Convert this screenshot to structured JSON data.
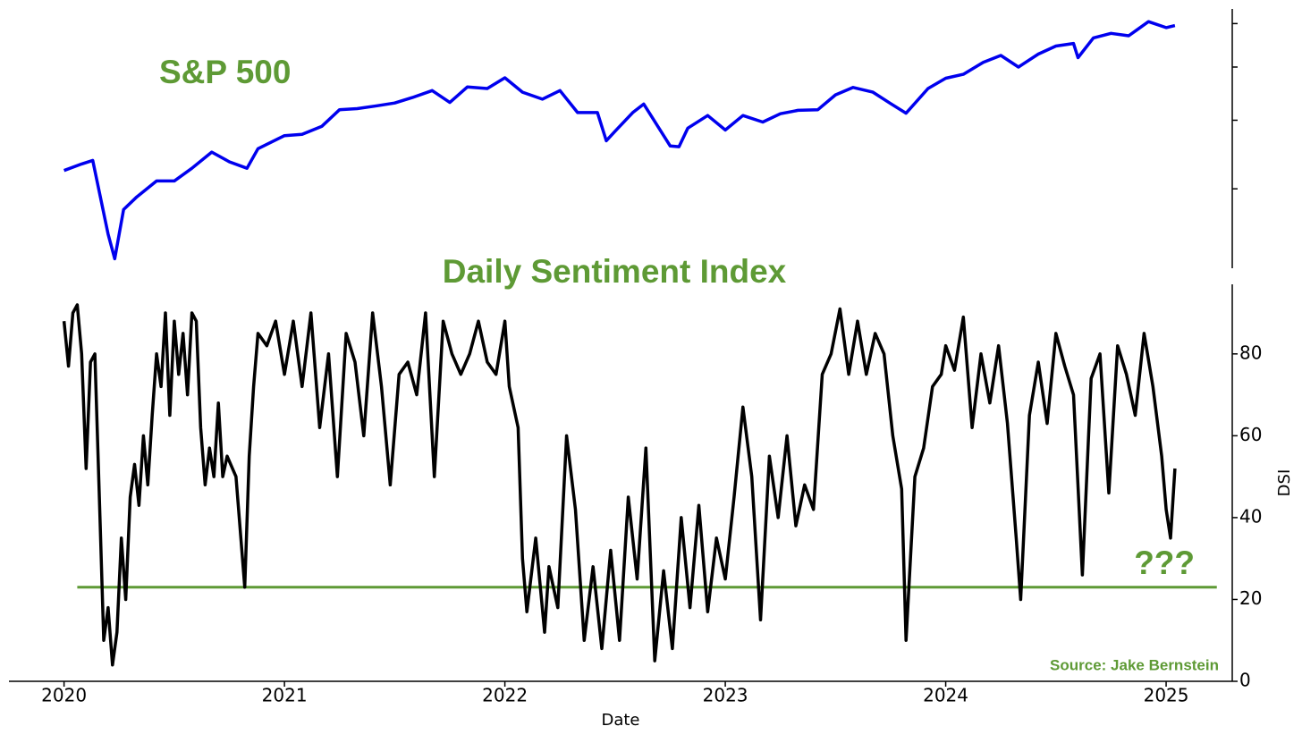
{
  "chart_data": [
    {
      "type": "line",
      "title": "S&P 500",
      "title_color": "#5e9a35",
      "xlim": [
        2019.75,
        2025.3
      ],
      "ylim": [
        2150,
        6380
      ],
      "log_scale": true,
      "show_ytick_labels": false,
      "yticks": [
        3000,
        4000,
        5000,
        6000
      ],
      "series": [
        {
          "name": "S&P 500",
          "color": "#0000ee",
          "x": [
            2020.0,
            2020.08,
            2020.13,
            2020.2,
            2020.23,
            2020.27,
            2020.33,
            2020.42,
            2020.5,
            2020.58,
            2020.67,
            2020.75,
            2020.83,
            2020.88,
            2021.0,
            2021.08,
            2021.17,
            2021.25,
            2021.33,
            2021.42,
            2021.5,
            2021.58,
            2021.67,
            2021.75,
            2021.83,
            2021.92,
            2022.0,
            2022.08,
            2022.17,
            2022.25,
            2022.33,
            2022.42,
            2022.46,
            2022.5,
            2022.58,
            2022.63,
            2022.75,
            2022.79,
            2022.83,
            2022.92,
            2023.0,
            2023.08,
            2023.17,
            2023.25,
            2023.33,
            2023.42,
            2023.5,
            2023.58,
            2023.67,
            2023.75,
            2023.82,
            2023.92,
            2024.0,
            2024.08,
            2024.17,
            2024.25,
            2024.33,
            2024.42,
            2024.5,
            2024.58,
            2024.6,
            2024.67,
            2024.75,
            2024.83,
            2024.92,
            2025.0,
            2025.04
          ],
          "values": [
            3240,
            3330,
            3380,
            2480,
            2237,
            2750,
            2900,
            3100,
            3100,
            3270,
            3500,
            3360,
            3270,
            3550,
            3750,
            3770,
            3900,
            4180,
            4200,
            4250,
            4300,
            4400,
            4530,
            4310,
            4600,
            4570,
            4780,
            4500,
            4370,
            4530,
            4130,
            4130,
            3670,
            3820,
            4130,
            4280,
            3590,
            3580,
            3870,
            4080,
            3840,
            4080,
            3970,
            4110,
            4170,
            4180,
            4450,
            4590,
            4500,
            4290,
            4120,
            4570,
            4770,
            4850,
            5100,
            5250,
            5000,
            5280,
            5460,
            5520,
            5200,
            5650,
            5760,
            5700,
            6050,
            5900,
            5950
          ]
        }
      ]
    },
    {
      "type": "line",
      "title": "Daily Sentiment Index",
      "title_color": "#5e9a35",
      "x_label": "Date",
      "y_label": "DSI",
      "xlim": [
        2019.75,
        2025.3
      ],
      "xticks": [
        2020,
        2021,
        2022,
        2023,
        2024,
        2025
      ],
      "ylim": [
        0,
        97
      ],
      "yticks": [
        0,
        20,
        40,
        60,
        80
      ],
      "hline": {
        "value": 23,
        "color": "#5e9a35",
        "x": [
          2020.06,
          2025.23
        ]
      },
      "annotation": "???",
      "source": "Source: Jake Bernstein",
      "series": [
        {
          "name": "DSI",
          "color": "#000000",
          "x": [
            2020.0,
            2020.02,
            2020.04,
            2020.06,
            2020.08,
            2020.1,
            2020.12,
            2020.14,
            2020.16,
            2020.18,
            2020.2,
            2020.22,
            2020.24,
            2020.26,
            2020.28,
            2020.3,
            2020.32,
            2020.34,
            2020.36,
            2020.38,
            2020.4,
            2020.42,
            2020.44,
            2020.46,
            2020.48,
            2020.5,
            2020.52,
            2020.54,
            2020.56,
            2020.58,
            2020.6,
            2020.62,
            2020.64,
            2020.66,
            2020.68,
            2020.7,
            2020.72,
            2020.74,
            2020.78,
            2020.82,
            2020.84,
            2020.86,
            2020.88,
            2020.92,
            2020.96,
            2021.0,
            2021.04,
            2021.08,
            2021.12,
            2021.16,
            2021.2,
            2021.24,
            2021.28,
            2021.32,
            2021.36,
            2021.4,
            2021.44,
            2021.48,
            2021.52,
            2021.56,
            2021.6,
            2021.64,
            2021.68,
            2021.72,
            2021.76,
            2021.8,
            2021.84,
            2021.88,
            2021.92,
            2021.96,
            2022.0,
            2022.02,
            2022.06,
            2022.08,
            2022.1,
            2022.14,
            2022.18,
            2022.2,
            2022.24,
            2022.28,
            2022.32,
            2022.36,
            2022.4,
            2022.44,
            2022.48,
            2022.52,
            2022.56,
            2022.6,
            2022.64,
            2022.68,
            2022.72,
            2022.76,
            2022.8,
            2022.84,
            2022.88,
            2022.92,
            2022.96,
            2023.0,
            2023.04,
            2023.08,
            2023.12,
            2023.16,
            2023.2,
            2023.24,
            2023.28,
            2023.32,
            2023.36,
            2023.4,
            2023.44,
            2023.48,
            2023.52,
            2023.56,
            2023.6,
            2023.64,
            2023.68,
            2023.72,
            2023.76,
            2023.8,
            2023.82,
            2023.86,
            2023.9,
            2023.94,
            2023.98,
            2024.0,
            2024.04,
            2024.08,
            2024.12,
            2024.16,
            2024.2,
            2024.24,
            2024.28,
            2024.32,
            2024.34,
            2024.38,
            2024.42,
            2024.46,
            2024.5,
            2024.54,
            2024.58,
            2024.62,
            2024.66,
            2024.7,
            2024.74,
            2024.78,
            2024.82,
            2024.86,
            2024.9,
            2024.94,
            2024.98,
            2025.0,
            2025.02,
            2025.04
          ],
          "values": [
            88,
            77,
            90,
            92,
            80,
            52,
            78,
            80,
            45,
            10,
            18,
            4,
            12,
            35,
            20,
            45,
            53,
            43,
            60,
            48,
            65,
            80,
            72,
            90,
            65,
            88,
            75,
            85,
            70,
            90,
            88,
            62,
            48,
            57,
            50,
            68,
            50,
            55,
            50,
            23,
            55,
            72,
            85,
            82,
            88,
            75,
            88,
            72,
            90,
            62,
            80,
            50,
            85,
            78,
            60,
            90,
            72,
            48,
            75,
            78,
            70,
            90,
            50,
            88,
            80,
            75,
            80,
            88,
            78,
            75,
            88,
            72,
            62,
            30,
            17,
            35,
            12,
            28,
            18,
            60,
            42,
            10,
            28,
            8,
            32,
            10,
            45,
            25,
            57,
            5,
            27,
            8,
            40,
            18,
            43,
            17,
            35,
            25,
            45,
            67,
            50,
            15,
            55,
            40,
            60,
            38,
            48,
            42,
            75,
            80,
            91,
            75,
            88,
            75,
            85,
            80,
            60,
            47,
            10,
            50,
            57,
            72,
            75,
            82,
            76,
            89,
            62,
            80,
            68,
            82,
            63,
            35,
            20,
            65,
            78,
            63,
            85,
            77,
            70,
            26,
            74,
            80,
            46,
            82,
            75,
            65,
            85,
            72,
            55,
            42,
            35,
            52
          ]
        }
      ]
    }
  ]
}
